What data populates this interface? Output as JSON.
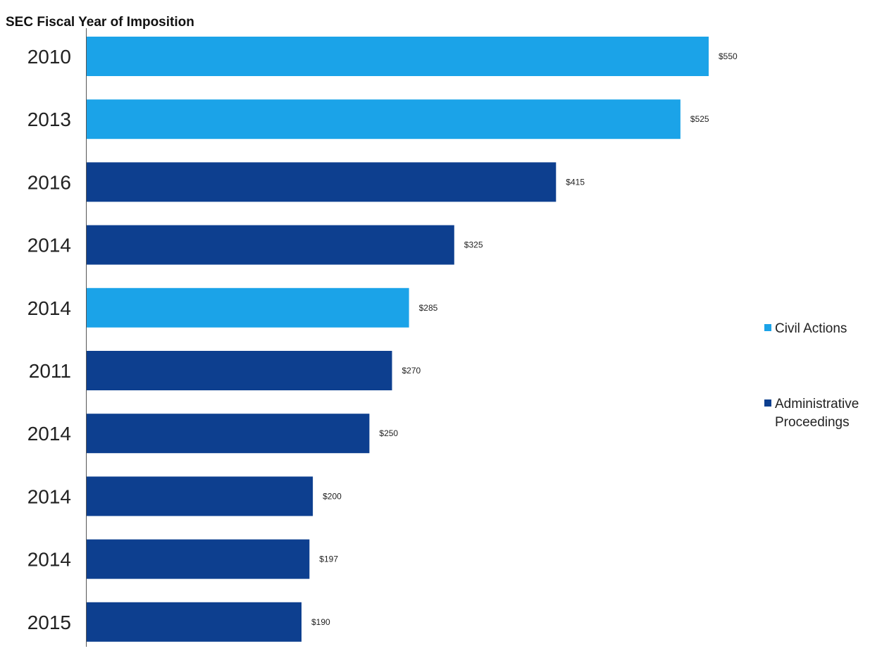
{
  "chart_data": {
    "type": "bar",
    "orientation": "horizontal",
    "y_axis_title": "SEC Fiscal Year of Imposition",
    "categories": [
      "2010",
      "2013",
      "2016",
      "2014",
      "2014",
      "2011",
      "2014",
      "2014",
      "2014",
      "2015"
    ],
    "values": [
      550,
      525,
      415,
      325,
      285,
      270,
      250,
      200,
      197,
      190
    ],
    "value_labels": [
      "$550",
      "$525",
      "$415",
      "$325",
      "$285",
      "$270",
      "$250",
      "$200",
      "$197",
      "$190"
    ],
    "series_index": [
      0,
      0,
      1,
      1,
      0,
      1,
      1,
      1,
      1,
      1
    ],
    "series": [
      {
        "name": "Civil Actions",
        "color": "#1ba3e8"
      },
      {
        "name": "Administrative Proceedings",
        "name_lines": [
          "Administrative",
          "Proceedings"
        ],
        "color": "#0d3f8f"
      }
    ],
    "xlim": [
      0,
      550
    ],
    "grid": false,
    "legend_position": "right"
  }
}
